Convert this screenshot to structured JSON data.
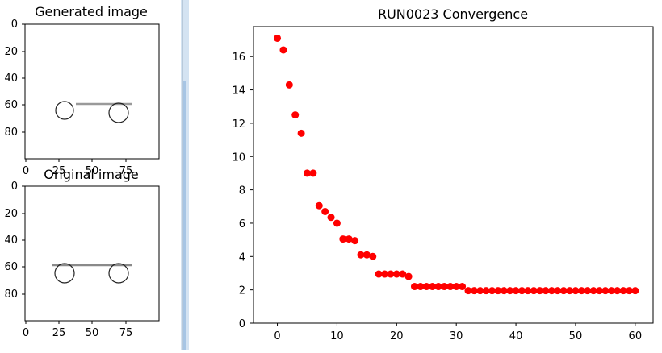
{
  "panels": {
    "generated": {
      "title": "Generated image",
      "yticks": [
        "0",
        "20",
        "40",
        "60",
        "80"
      ],
      "xticks": [
        "0",
        "25",
        "50",
        "75"
      ]
    },
    "original": {
      "title": "Original image",
      "yticks": [
        "0",
        "20",
        "40",
        "60",
        "80"
      ],
      "xticks": [
        "0",
        "25",
        "50",
        "75"
      ]
    }
  },
  "chart_data": {
    "type": "scatter",
    "title": "RUN0023 Convergence",
    "xlabel": "",
    "ylabel": "",
    "xlim": [
      -4,
      63
    ],
    "ylim": [
      0,
      17.8
    ],
    "xticks": [
      0,
      10,
      20,
      30,
      40,
      50,
      60
    ],
    "yticks": [
      0,
      2,
      4,
      6,
      8,
      10,
      12,
      14,
      16
    ],
    "grid": false,
    "marker_color": "#ff0000",
    "x": [
      0,
      1,
      2,
      3,
      4,
      5,
      6,
      7,
      8,
      9,
      10,
      11,
      12,
      13,
      14,
      15,
      16,
      17,
      18,
      19,
      20,
      21,
      22,
      23,
      24,
      25,
      26,
      27,
      28,
      29,
      30,
      31,
      32,
      33,
      34,
      35,
      36,
      37,
      38,
      39,
      40,
      41,
      42,
      43,
      44,
      45,
      46,
      47,
      48,
      49,
      50,
      51,
      52,
      53,
      54,
      55,
      56,
      57,
      58,
      59,
      60
    ],
    "y": [
      17.1,
      16.4,
      14.3,
      12.5,
      11.4,
      9.0,
      9.0,
      7.05,
      6.7,
      6.35,
      6.0,
      5.05,
      5.05,
      4.95,
      4.1,
      4.1,
      4.0,
      2.95,
      2.95,
      2.95,
      2.95,
      2.95,
      2.8,
      2.2,
      2.2,
      2.2,
      2.2,
      2.2,
      2.2,
      2.2,
      2.2,
      2.2,
      1.95,
      1.95,
      1.95,
      1.95,
      1.95,
      1.95,
      1.95,
      1.95,
      1.95,
      1.95,
      1.95,
      1.95,
      1.95,
      1.95,
      1.95,
      1.95,
      1.95,
      1.95,
      1.95,
      1.95,
      1.95,
      1.95,
      1.95,
      1.95,
      1.95,
      1.95,
      1.95,
      1.95,
      1.95
    ]
  }
}
